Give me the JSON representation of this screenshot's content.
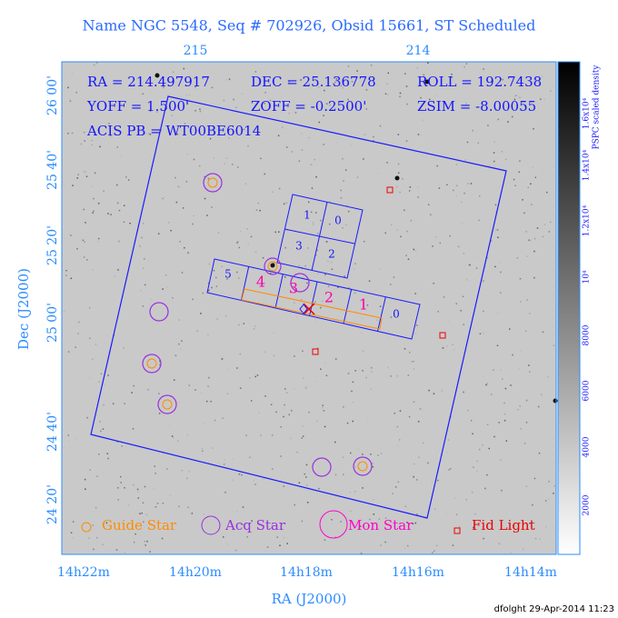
{
  "title": "Name NGC 5548, Seq # 702926, Obsid 15661, ST Scheduled",
  "top_axis": {
    "ticks": [
      "215",
      "214"
    ]
  },
  "header": {
    "ra": "RA = 214.497917",
    "dec": "DEC = 25.136778",
    "roll": "ROLL = 192.7438",
    "yoff": "YOFF = 1.500'",
    "zoff": "ZOFF = -0.2500'",
    "zsim": "ZSIM = -8.00055",
    "acis": "ACIS PB = WT00BE6014"
  },
  "y_axis": {
    "title": "Dec (J2000)",
    "ticks": [
      "26 00'",
      "25 40'",
      "25 20'",
      "25 00'",
      "24 40'",
      "24 20'"
    ]
  },
  "x_axis": {
    "title": "RA (J2000)",
    "ticks": [
      "14h22m",
      "14h20m",
      "14h18m",
      "14h16m",
      "14h14m"
    ]
  },
  "colorbar": {
    "title": "PSPC scaled density",
    "ticks": [
      "2000",
      "4000",
      "6000",
      "8000",
      "10⁴",
      "1.2x10⁴",
      "1.4x10⁴",
      "1.6x10⁴"
    ]
  },
  "legend": [
    "Guide Star",
    "Acq Star",
    "Mon Star",
    "Fid Light"
  ],
  "ccd": {
    "i_array": [
      "0",
      "1",
      "2",
      "3"
    ],
    "s_array": [
      "0",
      "1",
      "2",
      "3",
      "4",
      "5"
    ]
  },
  "footer": "dfolght 29-Apr-2014 11:23"
}
